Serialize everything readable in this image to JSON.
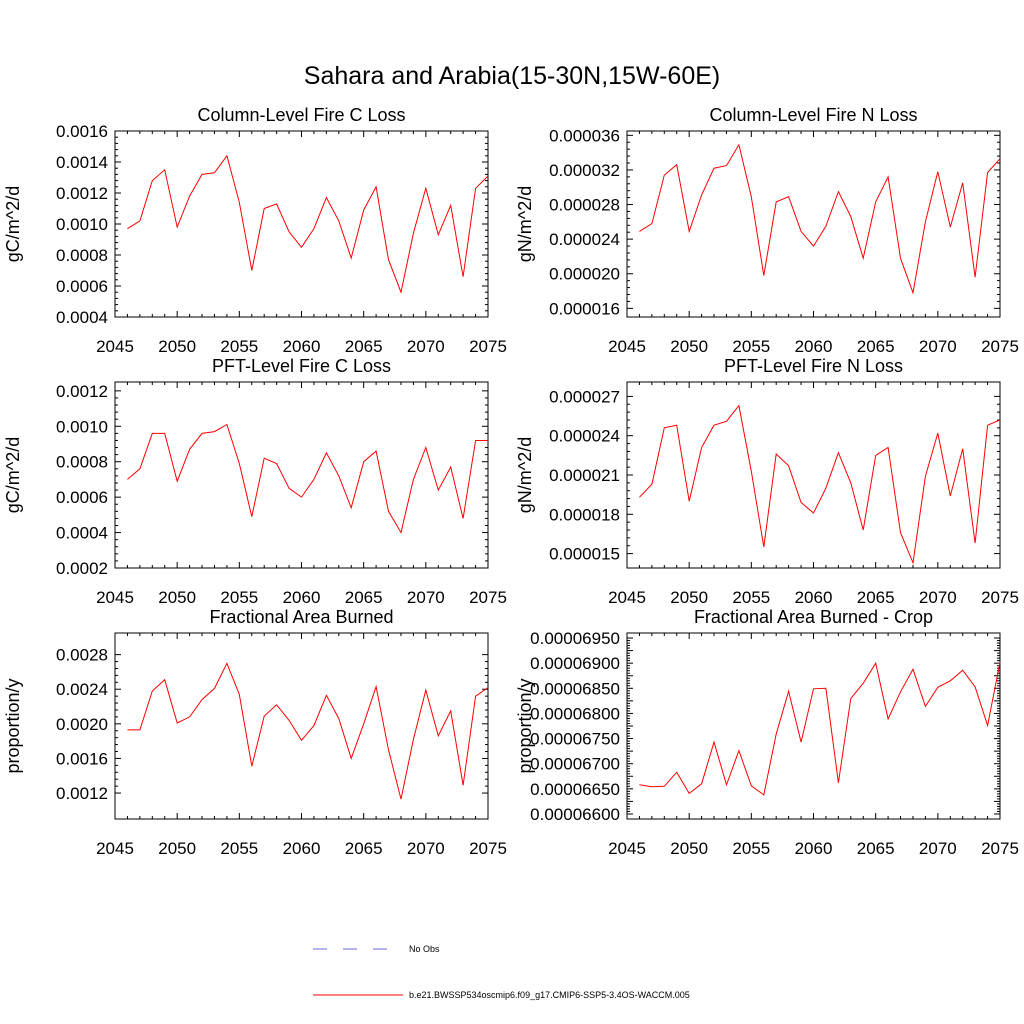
{
  "figure": {
    "title": "Sahara and Arabia(15-30N,15W-60E)",
    "line_color": "#ff0000",
    "obs_color": "#6a6ad8"
  },
  "legend": {
    "items": [
      {
        "label": "No Obs",
        "style": "dashed",
        "color": "#6a6ad8"
      },
      {
        "label": "b.e21.BWSSP534oscmip6.f09_g17.CMIP6-SSP5-3.4OS-WACCM.005",
        "style": "solid",
        "color": "#ff0000"
      }
    ]
  },
  "chart_data": [
    {
      "type": "line",
      "title": "Column-Level Fire C Loss",
      "xlabel": "",
      "ylabel": "gC/m^2/d",
      "xlim": [
        2045,
        2075
      ],
      "ylim": [
        0.0004,
        0.0016
      ],
      "xticks": [
        2045,
        2050,
        2055,
        2060,
        2065,
        2070,
        2075
      ],
      "xtick_labels": [
        "2045",
        "2050",
        "2055",
        "2060",
        "2065",
        "2070",
        "2075"
      ],
      "yticks": [
        0.0004,
        0.0006,
        0.0008,
        0.001,
        0.0012,
        0.0014,
        0.0016
      ],
      "ytick_labels": [
        "0.0004",
        "0.0006",
        "0.0008",
        "0.0010",
        "0.0012",
        "0.0014",
        "0.0016"
      ],
      "grid": false,
      "x": [
        2046,
        2047,
        2048,
        2049,
        2050,
        2051,
        2052,
        2053,
        2054,
        2055,
        2056,
        2057,
        2058,
        2059,
        2060,
        2061,
        2062,
        2063,
        2064,
        2065,
        2066,
        2067,
        2068,
        2069,
        2070,
        2071,
        2072,
        2073,
        2074,
        2075
      ],
      "series": [
        {
          "values": [
            0.00097,
            0.00102,
            0.00128,
            0.00135,
            0.00098,
            0.00118,
            0.00132,
            0.00133,
            0.00144,
            0.00114,
            0.0007,
            0.0011,
            0.00113,
            0.00095,
            0.00085,
            0.00097,
            0.00117,
            0.00102,
            0.00078,
            0.00109,
            0.00124,
            0.00077,
            0.00056,
            0.00094,
            0.00123,
            0.00093,
            0.00112,
            0.00066,
            0.00123,
            0.00131
          ]
        }
      ]
    },
    {
      "type": "line",
      "title": "Column-Level Fire N Loss",
      "xlabel": "",
      "ylabel": "gN/m^2/d",
      "xlim": [
        2045,
        2075
      ],
      "ylim": [
        1.5e-05,
        3.65e-05
      ],
      "xticks": [
        2045,
        2050,
        2055,
        2060,
        2065,
        2070,
        2075
      ],
      "xtick_labels": [
        "2045",
        "2050",
        "2055",
        "2060",
        "2065",
        "2070",
        "2075"
      ],
      "yticks": [
        1.6e-05,
        2e-05,
        2.4e-05,
        2.8e-05,
        3.2e-05,
        3.6e-05
      ],
      "ytick_labels": [
        "0.000016",
        "0.000020",
        "0.000024",
        "0.000028",
        "0.000032",
        "0.000036"
      ],
      "grid": false,
      "x": [
        2046,
        2047,
        2048,
        2049,
        2050,
        2051,
        2052,
        2053,
        2054,
        2055,
        2056,
        2057,
        2058,
        2059,
        2060,
        2061,
        2062,
        2063,
        2064,
        2065,
        2066,
        2067,
        2068,
        2069,
        2070,
        2071,
        2072,
        2073,
        2074,
        2075
      ],
      "series": [
        {
          "values": [
            2.49e-05,
            2.58e-05,
            3.14e-05,
            3.26e-05,
            2.49e-05,
            2.91e-05,
            3.22e-05,
            3.25e-05,
            3.49e-05,
            2.89e-05,
            1.98e-05,
            2.83e-05,
            2.89e-05,
            2.49e-05,
            2.32e-05,
            2.55e-05,
            2.95e-05,
            2.66e-05,
            2.18e-05,
            2.83e-05,
            3.12e-05,
            2.18e-05,
            1.78e-05,
            2.6e-05,
            3.18e-05,
            2.54e-05,
            3.05e-05,
            1.96e-05,
            3.17e-05,
            3.33e-05
          ]
        }
      ]
    },
    {
      "type": "line",
      "title": "PFT-Level Fire C Loss",
      "xlabel": "",
      "ylabel": "gC/m^2/d",
      "xlim": [
        2045,
        2075
      ],
      "ylim": [
        0.0002,
        0.00125
      ],
      "xticks": [
        2045,
        2050,
        2055,
        2060,
        2065,
        2070,
        2075
      ],
      "xtick_labels": [
        "2045",
        "2050",
        "2055",
        "2060",
        "2065",
        "2070",
        "2075"
      ],
      "yticks": [
        0.0002,
        0.0004,
        0.0006,
        0.0008,
        0.001,
        0.0012
      ],
      "ytick_labels": [
        "0.0002",
        "0.0004",
        "0.0006",
        "0.0008",
        "0.0010",
        "0.0012"
      ],
      "grid": false,
      "x": [
        2046,
        2047,
        2048,
        2049,
        2050,
        2051,
        2052,
        2053,
        2054,
        2055,
        2056,
        2057,
        2058,
        2059,
        2060,
        2061,
        2062,
        2063,
        2064,
        2065,
        2066,
        2067,
        2068,
        2069,
        2070,
        2071,
        2072,
        2073,
        2074,
        2075
      ],
      "series": [
        {
          "values": [
            0.0007,
            0.00076,
            0.00096,
            0.00096,
            0.00069,
            0.00087,
            0.00096,
            0.00097,
            0.00101,
            0.00079,
            0.00049,
            0.00082,
            0.00079,
            0.00065,
            0.0006,
            0.0007,
            0.00085,
            0.00072,
            0.00054,
            0.0008,
            0.00086,
            0.00052,
            0.0004,
            0.0007,
            0.00088,
            0.00064,
            0.00077,
            0.00048,
            0.00092,
            0.00092
          ]
        }
      ]
    },
    {
      "type": "line",
      "title": "PFT-Level Fire N Loss",
      "xlabel": "",
      "ylabel": "gN/m^2/d",
      "xlim": [
        2045,
        2075
      ],
      "ylim": [
        1.39e-05,
        2.81e-05
      ],
      "xticks": [
        2045,
        2050,
        2055,
        2060,
        2065,
        2070,
        2075
      ],
      "xtick_labels": [
        "2045",
        "2050",
        "2055",
        "2060",
        "2065",
        "2070",
        "2075"
      ],
      "yticks": [
        1.5e-05,
        1.8e-05,
        2.1e-05,
        2.4e-05,
        2.7e-05
      ],
      "ytick_labels": [
        "0.000015",
        "0.000018",
        "0.000021",
        "0.000024",
        "0.000027"
      ],
      "grid": false,
      "x": [
        2046,
        2047,
        2048,
        2049,
        2050,
        2051,
        2052,
        2053,
        2054,
        2055,
        2056,
        2057,
        2058,
        2059,
        2060,
        2061,
        2062,
        2063,
        2064,
        2065,
        2066,
        2067,
        2068,
        2069,
        2070,
        2071,
        2072,
        2073,
        2074,
        2075
      ],
      "series": [
        {
          "values": [
            1.93e-05,
            2.03e-05,
            2.46e-05,
            2.48e-05,
            1.9e-05,
            2.31e-05,
            2.48e-05,
            2.51e-05,
            2.63e-05,
            2.13e-05,
            1.55e-05,
            2.26e-05,
            2.17e-05,
            1.89e-05,
            1.81e-05,
            2e-05,
            2.27e-05,
            2.04e-05,
            1.68e-05,
            2.25e-05,
            2.31e-05,
            1.66e-05,
            1.43e-05,
            2.09e-05,
            2.42e-05,
            1.94e-05,
            2.3e-05,
            1.58e-05,
            2.48e-05,
            2.52e-05
          ]
        }
      ]
    },
    {
      "type": "line",
      "title": "Fractional Area Burned",
      "xlabel": "",
      "ylabel": "proportion/y",
      "xlim": [
        2045,
        2075
      ],
      "ylim": [
        0.0009,
        0.00305
      ],
      "xticks": [
        2045,
        2050,
        2055,
        2060,
        2065,
        2070,
        2075
      ],
      "xtick_labels": [
        "2045",
        "2050",
        "2055",
        "2060",
        "2065",
        "2070",
        "2075"
      ],
      "yticks": [
        0.0012,
        0.0016,
        0.002,
        0.0024,
        0.0028
      ],
      "ytick_labels": [
        "0.0012",
        "0.0016",
        "0.0020",
        "0.0024",
        "0.0028"
      ],
      "grid": false,
      "x": [
        2046,
        2047,
        2048,
        2049,
        2050,
        2051,
        2052,
        2053,
        2054,
        2055,
        2056,
        2057,
        2058,
        2059,
        2060,
        2061,
        2062,
        2063,
        2064,
        2065,
        2066,
        2067,
        2068,
        2069,
        2070,
        2071,
        2072,
        2073,
        2074,
        2075
      ],
      "series": [
        {
          "values": [
            0.00193,
            0.00193,
            0.00238,
            0.00251,
            0.00201,
            0.00208,
            0.00228,
            0.00241,
            0.0027,
            0.00234,
            0.00151,
            0.00209,
            0.00222,
            0.00204,
            0.00181,
            0.00198,
            0.00233,
            0.00206,
            0.0016,
            0.002,
            0.00243,
            0.0017,
            0.00113,
            0.00182,
            0.00239,
            0.00186,
            0.00215,
            0.00129,
            0.00232,
            0.00242
          ]
        }
      ]
    },
    {
      "type": "line",
      "title": "Fractional Area Burned - Crop",
      "xlabel": "",
      "ylabel": "proportion/y",
      "xlim": [
        2045,
        2075
      ],
      "ylim": [
        6.59e-05,
        6.96e-05
      ],
      "xticks": [
        2045,
        2050,
        2055,
        2060,
        2065,
        2070,
        2075
      ],
      "xtick_labels": [
        "2045",
        "2050",
        "2055",
        "2060",
        "2065",
        "2070",
        "2075"
      ],
      "yticks": [
        6.6e-05,
        6.625e-05,
        6.65e-05,
        6.675e-05,
        6.7e-05,
        6.725e-05,
        6.75e-05,
        6.775e-05,
        6.8e-05,
        6.825e-05,
        6.85e-05,
        6.875e-05,
        6.9e-05,
        6.925e-05,
        6.95e-05
      ],
      "ytick_labels": [
        "0.00006600",
        "",
        "0.00006650",
        "",
        "0.00006700",
        "",
        "0.00006750",
        "",
        "0.00006800",
        "",
        "0.00006850",
        "",
        "0.00006900",
        "",
        "0.00006950"
      ],
      "grid": false,
      "x": [
        2046,
        2047,
        2048,
        2049,
        2050,
        2051,
        2052,
        2053,
        2054,
        2055,
        2056,
        2057,
        2058,
        2059,
        2060,
        2061,
        2062,
        2063,
        2064,
        2065,
        2066,
        2067,
        2068,
        2069,
        2070,
        2071,
        2072,
        2073,
        2074,
        2075
      ],
      "series": [
        {
          "values": [
            6.658e-05,
            6.654e-05,
            6.655e-05,
            6.683e-05,
            6.641e-05,
            6.66e-05,
            6.743e-05,
            6.658e-05,
            6.726e-05,
            6.656e-05,
            6.638e-05,
            6.759e-05,
            6.844e-05,
            6.743e-05,
            6.849e-05,
            6.85e-05,
            6.662e-05,
            6.83e-05,
            6.86e-05,
            6.9e-05,
            6.789e-05,
            6.843e-05,
            6.888e-05,
            6.814e-05,
            6.852e-05,
            6.865e-05,
            6.886e-05,
            6.853e-05,
            6.776e-05,
            6.902e-05
          ]
        }
      ]
    }
  ]
}
